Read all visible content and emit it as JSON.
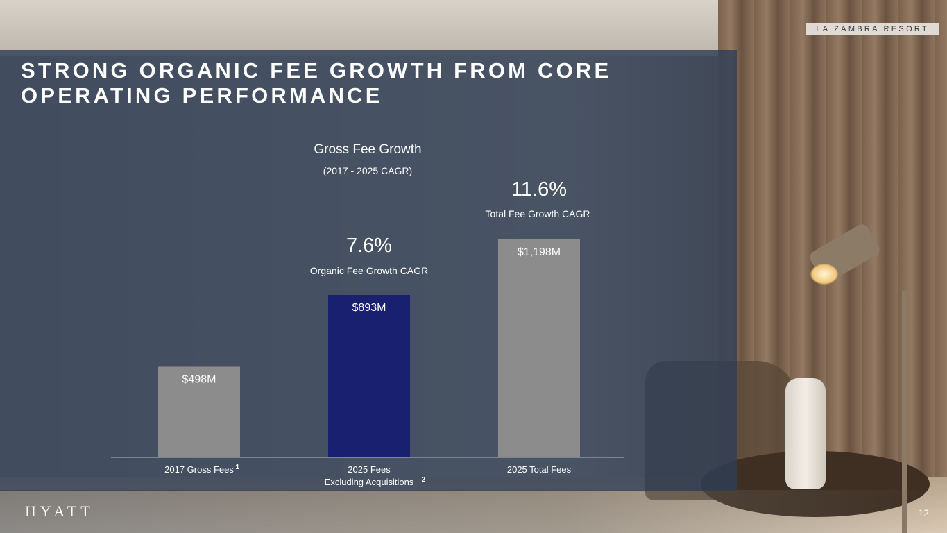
{
  "brand_tag": "LA ZAMBRA RESORT",
  "title": "STRONG ORGANIC FEE GROWTH FROM CORE OPERATING PERFORMANCE",
  "logo_text": "HYATT",
  "page_number": "12",
  "cagr": [
    {
      "value": "7.6%",
      "label": "Organic Fee Growth CAGR"
    },
    {
      "value": "11.6%",
      "label": "Total Fee Growth CAGR"
    }
  ],
  "chart_data": {
    "type": "bar",
    "title": "Gross Fee Growth",
    "subtitle": "(2017 - 2025 CAGR)",
    "categories": [
      "2017 Gross Fees",
      "2025 Fees Excluding Acquisitions",
      "2025 Total Fees"
    ],
    "category_lines": [
      [
        "2017 Gross Fees"
      ],
      [
        "2025 Fees",
        "Excluding Acquisitions"
      ],
      [
        "2025 Total Fees"
      ]
    ],
    "footnotes": [
      "1",
      "2",
      ""
    ],
    "values": [
      498,
      893,
      1198
    ],
    "data_labels": [
      "$498M",
      "$893M",
      "$1,198M"
    ],
    "colors": [
      "#8c8c8c",
      "#1a2070",
      "#8c8c8c"
    ],
    "xlabel": "",
    "ylabel": "",
    "ylim": [
      0,
      1198
    ],
    "grid": false,
    "legend": "none"
  }
}
